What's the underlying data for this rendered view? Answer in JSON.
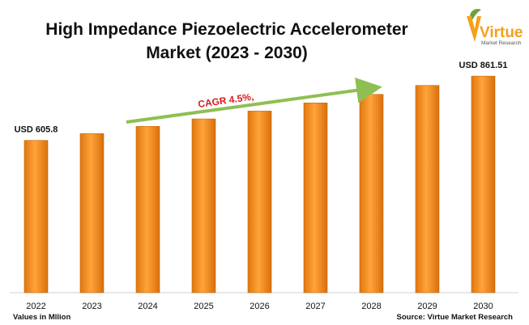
{
  "title_line1": "High Impedance Piezoelectric Accelerometer",
  "title_line2": "Market (2023 - 2030)",
  "logo": {
    "text": "Virtue",
    "subtext": "Market Research"
  },
  "units_note": "Values in Mllion",
  "source_note": "Source: Virtue Market Research",
  "colors": {
    "bar": "#f08a1c",
    "bar_dark": "#c9650a",
    "arrow": "#8fbf52",
    "cagr_text": "#d41d1d",
    "logo_orange": "#f5a01a",
    "logo_green": "#6aa33a"
  },
  "chart_data": {
    "type": "bar",
    "categories": [
      "2022",
      "2023",
      "2024",
      "2025",
      "2026",
      "2027",
      "2028",
      "2029",
      "2030"
    ],
    "values": [
      605.8,
      633.1,
      661.5,
      691.3,
      722.4,
      754.9,
      788.9,
      824.4,
      861.51
    ],
    "data_labels": [
      {
        "index": 0,
        "text": "USD 605.8"
      },
      {
        "index": 8,
        "text": "USD 861.51"
      }
    ],
    "annotation": {
      "text": "CAGR 4.5%,",
      "style": "arrow"
    },
    "title": "High Impedance Piezoelectric Accelerometer Market (2023 - 2030)",
    "xlabel": "",
    "ylabel": "",
    "ylim": [
      0,
      1100
    ],
    "grid": false,
    "legend": "none"
  }
}
